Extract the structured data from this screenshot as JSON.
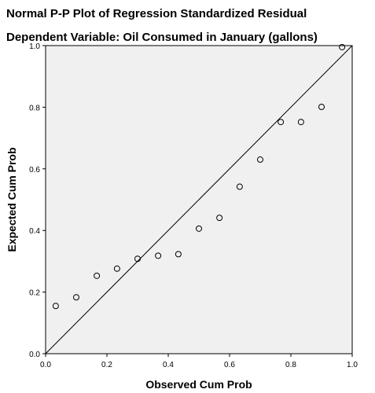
{
  "chart_data": {
    "type": "scatter",
    "title": "Normal P-P Plot of Regression Standardized Residual",
    "subtitle": "Dependent Variable: Oil Consumed in January (gallons)",
    "xlabel": "Observed Cum Prob",
    "ylabel": "Expected Cum Prob",
    "xlim": [
      0.0,
      1.0
    ],
    "ylim": [
      0.0,
      1.0
    ],
    "x_ticks": [
      "0.0",
      "0.2",
      "0.4",
      "0.6",
      "0.8",
      "1.0"
    ],
    "y_ticks": [
      "0.0",
      "0.2",
      "0.4",
      "0.6",
      "0.8",
      "1.0"
    ],
    "grid": false,
    "background_color": "#f0f0f0",
    "reference_line": {
      "from": [
        0.0,
        0.0
      ],
      "to": [
        1.0,
        1.0
      ]
    },
    "points": [
      {
        "x": 0.033,
        "y": 0.155
      },
      {
        "x": 0.1,
        "y": 0.183
      },
      {
        "x": 0.167,
        "y": 0.253
      },
      {
        "x": 0.233,
        "y": 0.276
      },
      {
        "x": 0.3,
        "y": 0.308
      },
      {
        "x": 0.367,
        "y": 0.318
      },
      {
        "x": 0.433,
        "y": 0.323
      },
      {
        "x": 0.5,
        "y": 0.406
      },
      {
        "x": 0.567,
        "y": 0.441
      },
      {
        "x": 0.633,
        "y": 0.542
      },
      {
        "x": 0.7,
        "y": 0.63
      },
      {
        "x": 0.767,
        "y": 0.752
      },
      {
        "x": 0.833,
        "y": 0.752
      },
      {
        "x": 0.9,
        "y": 0.801
      },
      {
        "x": 0.967,
        "y": 0.995
      }
    ]
  }
}
